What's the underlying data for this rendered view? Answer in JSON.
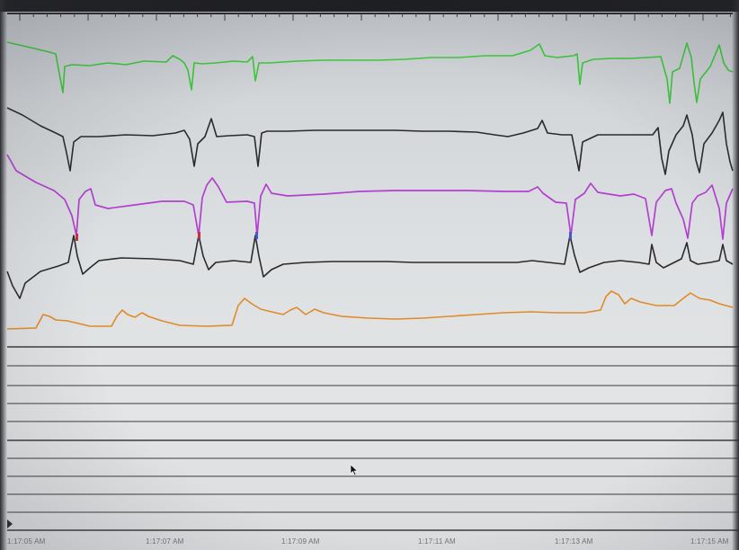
{
  "scene": "photo of a physiological monitor screen showing multiple waveform traces",
  "colors": {
    "background": "#e0e2e4",
    "trace_green": "#3cc83a",
    "trace_black": "#2a2a2e",
    "trace_purple": "#b33fd0",
    "trace_orange": "#e08a2a",
    "grid_line": "#3a3a40"
  },
  "time_axis": {
    "labels": [
      "1:17:05 AM",
      "1:17:07 AM",
      "1:17:09 AM",
      "1:17:11 AM",
      "1:17:13 AM",
      "1:17:15 AM"
    ]
  },
  "icons": {
    "pointer": "mouse-pointer-icon"
  }
}
